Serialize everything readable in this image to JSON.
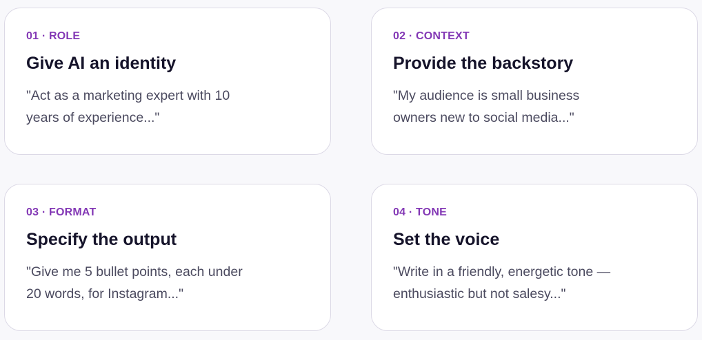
{
  "cards": [
    {
      "label": "01 · ROLE",
      "title": "Give AI an identity",
      "body": "\"Act as a marketing expert with 10 years of experience...\""
    },
    {
      "label": "02 · CONTEXT",
      "title": "Provide the backstory",
      "body": "\"My audience is small business owners new to social media...\""
    },
    {
      "label": "03 · FORMAT",
      "title": "Specify the output",
      "body": "\"Give me 5 bullet points, each under 20 words, for Instagram...\""
    },
    {
      "label": "04 · TONE",
      "title": "Set the voice",
      "body": "\"Write in a friendly, energetic tone — enthusiastic but not salesy...\""
    }
  ],
  "colors": {
    "accent": "#8338b5",
    "title": "#15132a",
    "body": "#4b4a5f"
  }
}
